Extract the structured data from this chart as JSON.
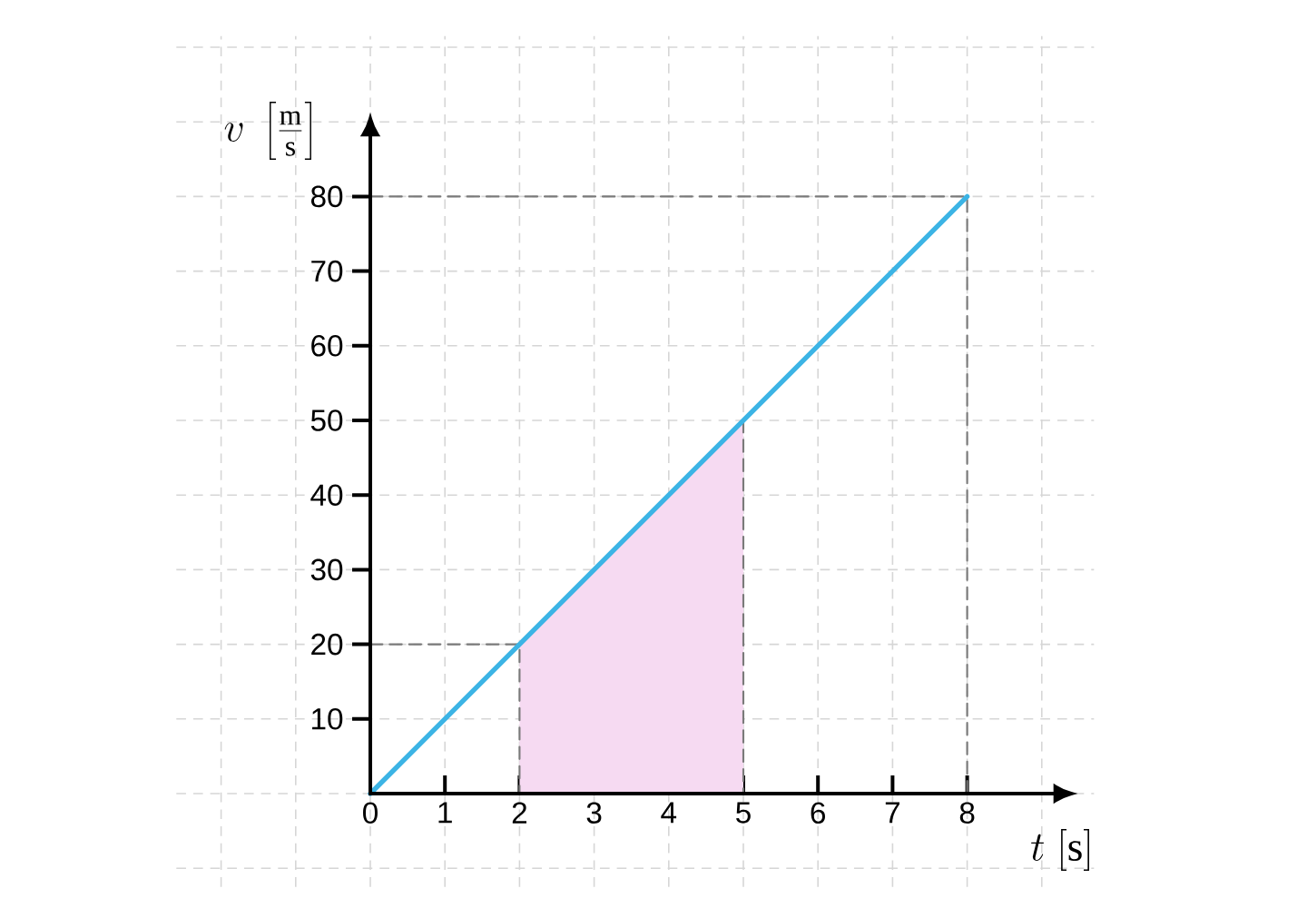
{
  "chart_data": {
    "type": "line",
    "xlabel": "t\\;[\\mathrm{s}]",
    "ylabel": "v\\;\\left[\\frac{\\mathrm{m}}{\\mathrm{s}}\\right]",
    "xlim": [
      -2.6,
      9.7
    ],
    "ylim": [
      -12.5,
      101.5
    ],
    "xticks": [
      0,
      1,
      2,
      3,
      4,
      5,
      6,
      7,
      8
    ],
    "yticks": [
      10,
      20,
      30,
      40,
      50,
      60,
      70,
      80
    ],
    "grid": true,
    "series": [
      {
        "type": "area",
        "color": "#f6daf2",
        "x": [
          2,
          5
        ],
        "values": [
          20,
          50
        ]
      },
      {
        "color": "#7a7a7a",
        "line_style": "dashed",
        "x": [
          0,
          2,
          2
        ],
        "values": [
          20,
          20,
          0
        ]
      },
      {
        "color": "#7a7a7a",
        "line_style": "dashed",
        "x": [
          0,
          8,
          8
        ],
        "values": [
          80,
          80,
          0
        ]
      },
      {
        "color": "#7a7a7a",
        "line_style": "dashed",
        "x": [
          5,
          5
        ],
        "values": [
          50,
          0
        ]
      },
      {
        "color": "#3cb4e5",
        "line_style": "solid",
        "x": [
          0,
          8
        ],
        "values": [
          0,
          80
        ]
      }
    ]
  }
}
